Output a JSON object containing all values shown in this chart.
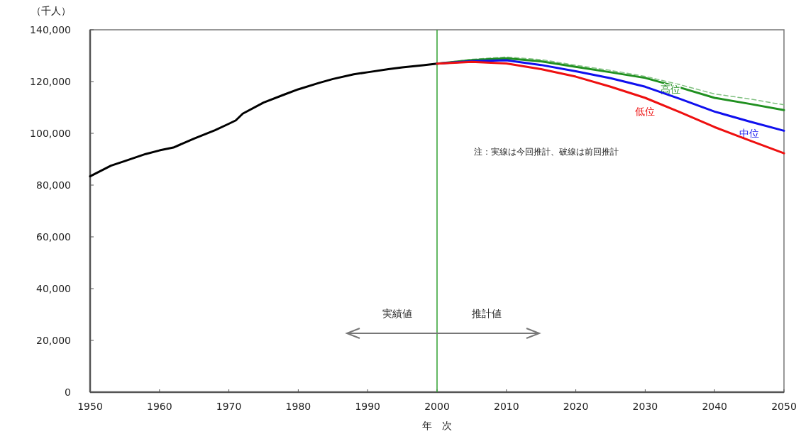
{
  "chart_data": {
    "type": "line",
    "xlabel": "年　次",
    "ylabel": "（千人）",
    "xlim": [
      1950,
      2050
    ],
    "xticks": [
      1950,
      1960,
      1970,
      1980,
      1990,
      2000,
      2010,
      2020,
      2030,
      2040,
      2050
    ],
    "ylim": [
      0,
      140000
    ],
    "yticks": [
      {
        "value": 0,
        "label": "0"
      },
      {
        "value": 20000,
        "label": "20,000"
      },
      {
        "value": 40000,
        "label": "40,000"
      },
      {
        "value": 60000,
        "label": "60,000"
      },
      {
        "value": 80000,
        "label": "80,000"
      },
      {
        "value": 100000,
        "label": "100,000"
      },
      {
        "value": 120000,
        "label": "120,000"
      },
      {
        "value": 140000,
        "label": "140,000"
      }
    ],
    "grid": false,
    "marker": "none",
    "series": [
      {
        "color": "#000000",
        "x": [
          1950,
          1953,
          1955,
          1958,
          1960,
          1962,
          1965,
          1968,
          1970,
          1971,
          1972,
          1975,
          1978,
          1980,
          1983,
          1985,
          1988,
          1990,
          1993,
          1995,
          1998,
          2000
        ],
        "values": [
          83400,
          87500,
          89300,
          92000,
          93400,
          94500,
          98000,
          101200,
          103700,
          105000,
          107600,
          111900,
          115000,
          117000,
          119500,
          121000,
          122800,
          123600,
          124800,
          125500,
          126300,
          126900
        ]
      },
      {
        "color": "#80c080",
        "line_style": "dashed",
        "x": [
          2000,
          2005,
          2010,
          2015,
          2020,
          2025,
          2030,
          2035,
          2040,
          2045,
          2050
        ],
        "values": [
          126900,
          128600,
          129500,
          128500,
          126300,
          124300,
          122000,
          118800,
          115200,
          113300,
          111000
        ]
      },
      {
        "name": "高位",
        "color": "#209020",
        "x": [
          2000,
          2005,
          2010,
          2015,
          2020,
          2025,
          2030,
          2035,
          2040,
          2045,
          2050
        ],
        "values": [
          126900,
          128300,
          129000,
          127800,
          125700,
          123600,
          121400,
          117700,
          113700,
          111400,
          109000
        ]
      },
      {
        "name": "中位",
        "color": "#1010ee",
        "x": [
          2000,
          2005,
          2010,
          2015,
          2020,
          2025,
          2030,
          2035,
          2040,
          2045,
          2050
        ],
        "values": [
          126900,
          127900,
          128200,
          126400,
          124000,
          121300,
          118000,
          113300,
          108400,
          104600,
          101000
        ]
      },
      {
        "name": "低位",
        "color": "#ee1010",
        "x": [
          2000,
          2005,
          2010,
          2015,
          2020,
          2025,
          2030,
          2035,
          2040,
          2045,
          2050
        ],
        "values": [
          126900,
          127600,
          127000,
          124800,
          121900,
          118000,
          113700,
          108200,
          102400,
          97300,
          92300
        ]
      }
    ],
    "ref_lines": [
      {
        "axis": "x",
        "value": 2000,
        "color": "#30a030"
      }
    ],
    "annotations": [
      "注：実線は今回推計、破線は前回推計",
      "実績値",
      "推計値"
    ]
  }
}
